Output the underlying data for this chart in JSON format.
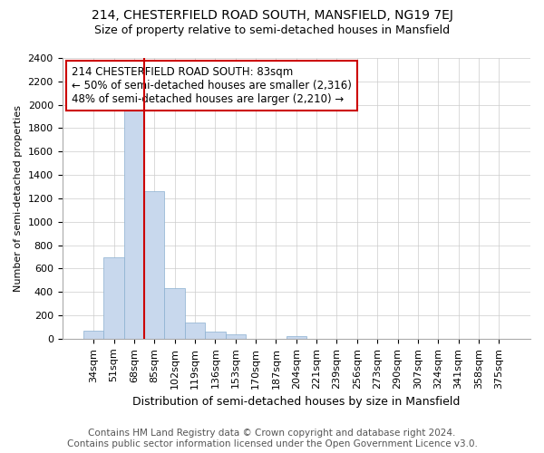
{
  "title": "214, CHESTERFIELD ROAD SOUTH, MANSFIELD, NG19 7EJ",
  "subtitle": "Size of property relative to semi-detached houses in Mansfield",
  "xlabel": "Distribution of semi-detached houses by size in Mansfield",
  "ylabel": "Number of semi-detached properties",
  "footer1": "Contains HM Land Registry data © Crown copyright and database right 2024.",
  "footer2": "Contains public sector information licensed under the Open Government Licence v3.0.",
  "annotation_line1": "214 CHESTERFIELD ROAD SOUTH: 83sqm",
  "annotation_line2": "← 50% of semi-detached houses are smaller (2,316)",
  "annotation_line3": "48% of semi-detached houses are larger (2,210) →",
  "bar_color": "#c8d8ed",
  "bar_edge_color": "#8ab0d0",
  "marker_line_color": "#cc0000",
  "annotation_box_edge_color": "#cc0000",
  "categories": [
    "34sqm",
    "51sqm",
    "68sqm",
    "85sqm",
    "102sqm",
    "119sqm",
    "136sqm",
    "153sqm",
    "170sqm",
    "187sqm",
    "204sqm",
    "221sqm",
    "239sqm",
    "256sqm",
    "273sqm",
    "290sqm",
    "307sqm",
    "324sqm",
    "341sqm",
    "358sqm",
    "375sqm"
  ],
  "values": [
    70,
    700,
    1950,
    1260,
    430,
    140,
    65,
    35,
    0,
    0,
    25,
    0,
    0,
    0,
    0,
    0,
    0,
    0,
    0,
    0,
    0
  ],
  "marker_bin_index": 3,
  "ylim": [
    0,
    2400
  ],
  "yticks": [
    0,
    200,
    400,
    600,
    800,
    1000,
    1200,
    1400,
    1600,
    1800,
    2000,
    2200,
    2400
  ],
  "title_fontsize": 10,
  "subtitle_fontsize": 9,
  "xlabel_fontsize": 9,
  "ylabel_fontsize": 8,
  "tick_fontsize": 8,
  "annotation_fontsize": 8.5,
  "footer_fontsize": 7.5
}
